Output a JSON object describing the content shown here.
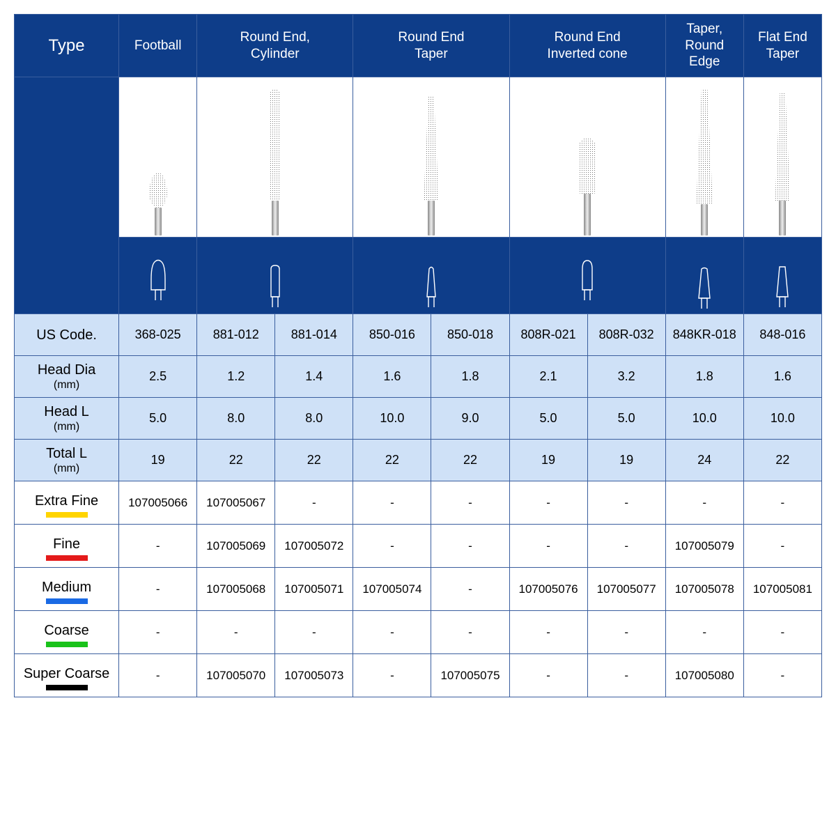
{
  "colors": {
    "header_bg": "#0e3d89",
    "header_text": "#ffffff",
    "spec_bg": "#cfe1f7",
    "grid": "#3a5e9e",
    "extra_fine": "#ffd400",
    "fine": "#e41a1a",
    "medium": "#1a6ae4",
    "coarse": "#19c21a",
    "super_coarse": "#000000"
  },
  "header": {
    "type": "Type",
    "cols": [
      "Football",
      "Round End,\nCylinder",
      "Round End\nTaper",
      "Round End\nInverted cone",
      "Taper,\nRound Edge",
      "Flat End\nTaper"
    ],
    "spans": [
      1,
      2,
      2,
      2,
      1,
      1
    ]
  },
  "us_code": {
    "label": "US Code.",
    "vals": [
      "368-025",
      "881-012",
      "881-014",
      "850-016",
      "850-018",
      "808R-021",
      "808R-032",
      "848KR-018",
      "848-016"
    ]
  },
  "head_dia": {
    "label": "Head Dia",
    "sub": "(mm)",
    "vals": [
      "2.5",
      "1.2",
      "1.4",
      "1.6",
      "1.8",
      "2.1",
      "3.2",
      "1.8",
      "1.6"
    ]
  },
  "head_l": {
    "label": "Head L",
    "sub": "(mm)",
    "vals": [
      "5.0",
      "8.0",
      "8.0",
      "10.0",
      "9.0",
      "5.0",
      "5.0",
      "10.0",
      "10.0"
    ]
  },
  "total_l": {
    "label": "Total L",
    "sub": "(mm)",
    "vals": [
      "19",
      "22",
      "22",
      "22",
      "22",
      "19",
      "19",
      "24",
      "22"
    ]
  },
  "grades": [
    {
      "label": "Extra Fine",
      "swatch": "extra_fine",
      "vals": [
        "107005066",
        "107005067",
        "-",
        "-",
        "-",
        "-",
        "-",
        "-",
        "-"
      ]
    },
    {
      "label": "Fine",
      "swatch": "fine",
      "vals": [
        "-",
        "107005069",
        "107005072",
        "-",
        "-",
        "-",
        "-",
        "107005079",
        "-"
      ]
    },
    {
      "label": "Medium",
      "swatch": "medium",
      "vals": [
        "-",
        "107005068",
        "107005071",
        "107005074",
        "-",
        "107005076",
        "107005077",
        "107005078",
        "107005081"
      ]
    },
    {
      "label": "Coarse",
      "swatch": "coarse",
      "vals": [
        "-",
        "-",
        "-",
        "-",
        "-",
        "-",
        "-",
        "-",
        "-"
      ]
    },
    {
      "label": "Super Coarse",
      "swatch": "super_coarse",
      "vals": [
        "-",
        "107005070",
        "107005073",
        "-",
        "107005075",
        "-",
        "-",
        "107005080",
        "-"
      ]
    }
  ],
  "burs": [
    {
      "shape": "football",
      "head_h": 50,
      "head_w": 26,
      "shank_h": 40
    },
    {
      "shape": "cylinder",
      "head_h": 160,
      "head_w": 16,
      "shank_h": 50
    },
    {
      "shape": "taper",
      "head_h": 150,
      "head_w": 22,
      "shank_h": 50
    },
    {
      "shape": "invcone",
      "head_h": 80,
      "head_w": 24,
      "shank_h": 60
    },
    {
      "shape": "taper",
      "head_h": 165,
      "head_w": 24,
      "shank_h": 45
    },
    {
      "shape": "taper_flat",
      "head_h": 155,
      "head_w": 22,
      "shank_h": 50
    }
  ],
  "outline_svgs": [
    "M10 45 L10 30 Q10 10 15 5 Q20 0 25 5 Q30 10 30 30 L30 45 Z",
    "M14 45 L14 5 Q14 0 20 0 Q26 0 26 5 L26 45 Z",
    "M14 45 L17 5 Q20 0 23 5 L26 45 Z",
    "M13 45 L13 15 Q13 3 20 3 Q27 3 27 15 L27 45 Z",
    "M12 45 L16 3 Q20 0 24 3 L28 45 Z",
    "M12 45 L16 2 L24 2 L28 45 Z"
  ]
}
